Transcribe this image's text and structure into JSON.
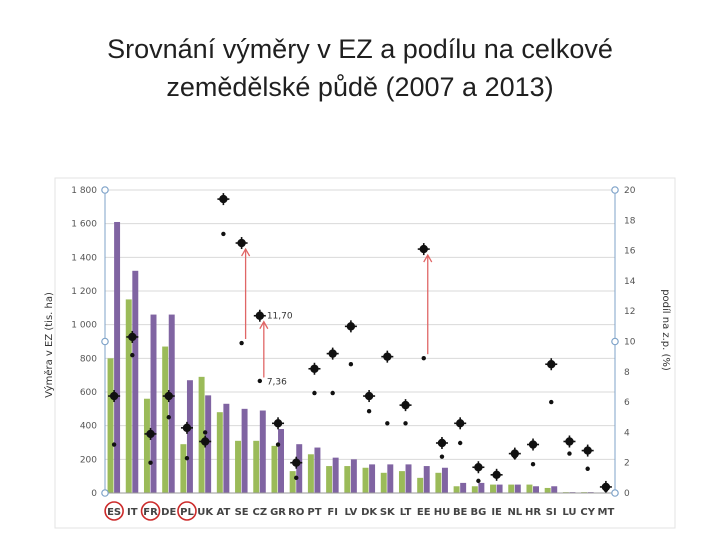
{
  "slide": {
    "title_line1": "Srovnání výměry v EZ a podílu na celkové",
    "title_line2": "zemědělské půdě (2007 a 2013)"
  },
  "colors": {
    "bar_2007": "#9bbb59",
    "bar_2013": "#8064a2",
    "marker": "#111111",
    "arrow": "#e06666",
    "circle": "#cc2b2b"
  },
  "chart_data": {
    "type": "bar",
    "categories": [
      "ES",
      "IT",
      "FR",
      "DE",
      "PL",
      "UK",
      "AT",
      "SE",
      "CZ",
      "GR",
      "RO",
      "PT",
      "FI",
      "LV",
      "DK",
      "SK",
      "LT",
      "EE",
      "HU",
      "BE",
      "BG",
      "IE",
      "NL",
      "HR",
      "SI",
      "LU",
      "CY",
      "MT"
    ],
    "circled_categories": [
      "ES",
      "FR",
      "PL"
    ],
    "y_left": {
      "label": "Výměra v EZ (tis. ha)",
      "min": 0,
      "max": 1800,
      "ticks": [
        0,
        200,
        400,
        600,
        800,
        1000,
        1200,
        1400,
        1600,
        1800
      ],
      "tick_labels": [
        "0",
        "200",
        "400",
        "600",
        "800",
        "1 000",
        "1 200",
        "1 400",
        "1 600",
        "1 800"
      ]
    },
    "y_right": {
      "label": "podíl na z.p. (%)",
      "min": 0,
      "max": 20,
      "ticks": [
        0,
        2,
        4,
        6,
        8,
        10,
        12,
        14,
        16,
        18,
        20
      ]
    },
    "grid": true,
    "series": [
      {
        "kind": "bar",
        "axis": "left",
        "values": [
          800,
          1150,
          560,
          870,
          290,
          690,
          480,
          310,
          310,
          280,
          130,
          230,
          160,
          160,
          150,
          120,
          130,
          90,
          120,
          40,
          40,
          50,
          50,
          50,
          30,
          5,
          5,
          0
        ]
      },
      {
        "kind": "bar",
        "axis": "left",
        "values": [
          1610,
          1320,
          1060,
          1060,
          670,
          580,
          530,
          500,
          490,
          380,
          290,
          270,
          210,
          200,
          170,
          170,
          170,
          160,
          150,
          60,
          60,
          50,
          50,
          40,
          40,
          5,
          5,
          0
        ]
      },
      {
        "kind": "marker_small",
        "axis": "right",
        "values": [
          3.2,
          9.1,
          2.0,
          5.0,
          2.3,
          4.0,
          17.1,
          9.9,
          7.4,
          3.2,
          1.0,
          6.6,
          6.6,
          8.5,
          5.4,
          4.6,
          4.6,
          8.9,
          2.4,
          3.3,
          0.8,
          1.2,
          2.4,
          1.9,
          6.0,
          2.6,
          1.6,
          0.2
        ]
      },
      {
        "kind": "marker_large",
        "axis": "right",
        "values": [
          6.4,
          10.3,
          3.9,
          6.4,
          4.3,
          3.4,
          19.4,
          16.5,
          11.7,
          4.6,
          2.0,
          8.2,
          9.2,
          11.0,
          6.4,
          9.0,
          5.8,
          16.1,
          3.3,
          4.6,
          1.7,
          1.2,
          2.6,
          3.2,
          8.5,
          3.4,
          2.8,
          0.4
        ]
      }
    ],
    "annotations": [
      {
        "text": "11,70",
        "category": "CZ",
        "value": 11.7
      },
      {
        "text": "7,36",
        "category": "CZ",
        "value": 7.36
      }
    ],
    "arrows": [
      {
        "category": "SE",
        "from": 9.9,
        "to": 16.5
      },
      {
        "category": "CZ",
        "from": 7.36,
        "to": 11.7
      },
      {
        "category": "EE",
        "from": 8.9,
        "to": 16.1
      }
    ]
  }
}
